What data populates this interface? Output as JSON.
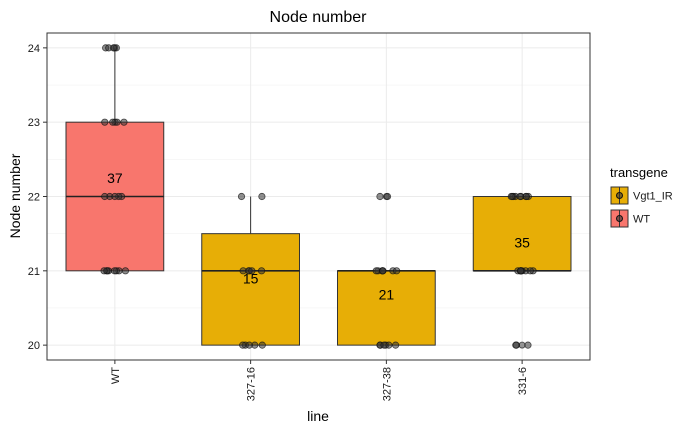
{
  "chart_data": {
    "type": "boxplot",
    "title": "Node number",
    "xlabel": "line",
    "ylabel": "Node number",
    "ylim": [
      19.8,
      24.2
    ],
    "yticks": [
      20,
      21,
      22,
      23,
      24
    ],
    "grid": true,
    "legend_position": "right",
    "legend_title": "transgene",
    "legend": [
      {
        "label": "Vgt1_IR",
        "color": "#E7AE06"
      },
      {
        "label": "WT",
        "color": "#F8766D"
      }
    ],
    "categories": [
      "WT",
      "327-16",
      "327-38",
      "331-6"
    ],
    "boxes": [
      {
        "category": "WT",
        "transgene": "WT",
        "color": "#F8766D",
        "min": 21,
        "q1": 21,
        "median": 22,
        "q3": 23,
        "max": 24,
        "n_label": "37",
        "n_label_y": 22.25
      },
      {
        "category": "327-16",
        "transgene": "Vgt1_IR",
        "color": "#E7AE06",
        "min": 20,
        "q1": 20,
        "median": 21,
        "q3": 21.5,
        "max": 22,
        "n_label": "15",
        "n_label_y": 20.9
      },
      {
        "category": "327-38",
        "transgene": "Vgt1_IR",
        "color": "#E7AE06",
        "min": 20,
        "q1": 20,
        "median": 21,
        "q3": 21,
        "max": 21,
        "n_label": "21",
        "n_label_y": 20.68
      },
      {
        "category": "331-6",
        "transgene": "Vgt1_IR",
        "color": "#E7AE06",
        "min": 21,
        "q1": 21,
        "median": 21,
        "q3": 22,
        "max": 22,
        "n_label": "35",
        "n_label_y": 21.38
      }
    ],
    "outliers": [
      {
        "category": "327-38",
        "y": 22
      },
      {
        "category": "331-6",
        "y": 20
      }
    ],
    "points": [
      {
        "category": "WT",
        "ys": [
          24,
          24,
          24,
          24,
          24,
          23,
          23,
          23,
          23,
          23,
          22,
          22,
          22,
          22,
          22,
          21,
          21,
          21,
          21,
          21,
          21,
          21,
          21
        ]
      },
      {
        "category": "327-16",
        "ys": [
          22,
          22,
          21,
          21,
          21,
          21,
          21,
          20,
          20,
          20,
          20,
          20
        ]
      },
      {
        "category": "327-38",
        "ys": [
          22,
          22,
          21,
          21,
          21,
          21,
          21,
          21,
          21,
          20,
          20,
          20,
          20,
          20,
          20
        ]
      },
      {
        "category": "331-6",
        "ys": [
          22,
          22,
          22,
          22,
          22,
          22,
          22,
          22,
          22,
          21,
          21,
          21,
          21,
          21,
          21,
          21,
          21,
          21,
          20,
          20,
          20
        ]
      }
    ]
  }
}
